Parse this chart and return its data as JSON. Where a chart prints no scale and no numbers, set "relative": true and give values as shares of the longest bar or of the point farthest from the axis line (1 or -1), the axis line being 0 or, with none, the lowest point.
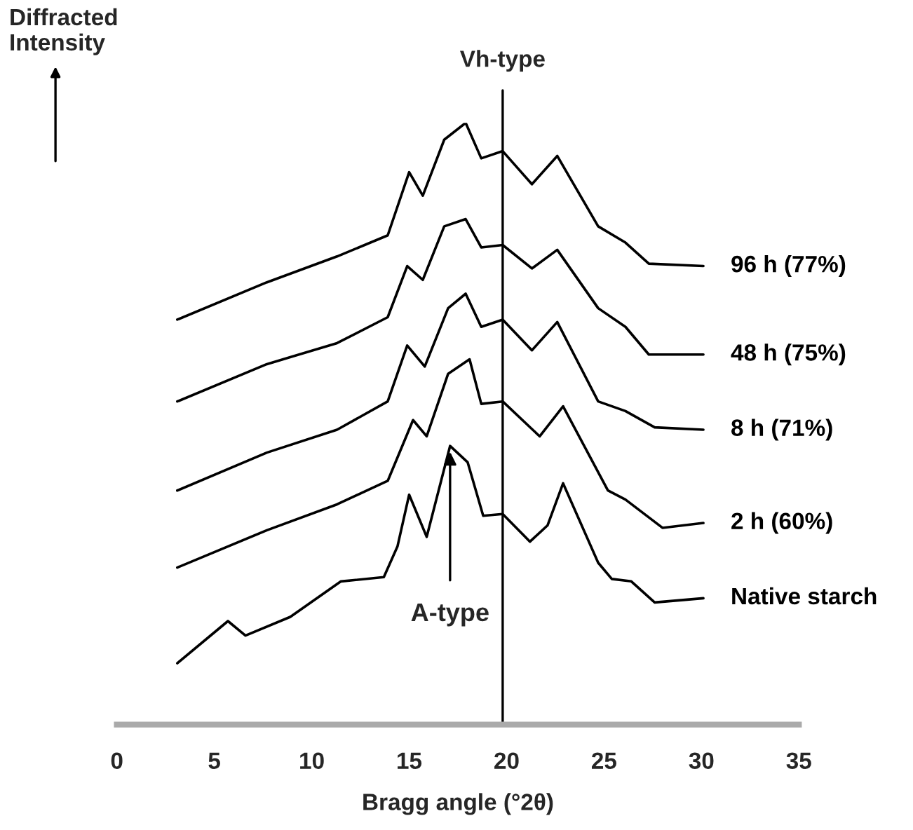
{
  "chart_data": {
    "type": "line",
    "relative": true,
    "ylabel": "Diffracted\nIntensity",
    "xlabel": "Bragg angle (°2θ)",
    "xlim": [
      0,
      35
    ],
    "xticks": [
      0,
      5,
      10,
      15,
      20,
      25,
      30,
      35
    ],
    "grid": false,
    "legend": false,
    "marker": "none",
    "line_style": "solid",
    "tick_labels": "x",
    "ref_lines": [
      {
        "axis": "x",
        "value": 19.8,
        "label": "Vh-type",
        "color": "#000000"
      }
    ],
    "annotations": [
      {
        "text": "A-type",
        "x": 17.1,
        "y": 0.463
      }
    ],
    "series": [
      {
        "name": "96 h (77%)",
        "color": "#000000",
        "x": [
          3.1,
          7.7,
          11.3,
          13.9,
          15.0,
          15.7,
          16.8,
          17.9,
          18.7,
          19.8,
          21.3,
          22.6,
          24.7,
          26.1,
          27.3,
          30.1
        ],
        "values": [
          0.673,
          0.735,
          0.778,
          0.813,
          0.918,
          0.879,
          0.972,
          1,
          0.941,
          0.953,
          0.898,
          0.945,
          0.828,
          0.801,
          0.766,
          0.762
        ]
      },
      {
        "name": "48 h (75%)",
        "color": "#000000",
        "x": [
          3.1,
          7.7,
          11.3,
          13.9,
          14.9,
          15.7,
          16.8,
          17.9,
          18.7,
          19.8,
          21.3,
          22.6,
          24.7,
          26.1,
          27.3,
          30.1
        ],
        "values": [
          0.537,
          0.599,
          0.634,
          0.677,
          0.762,
          0.739,
          0.828,
          0.84,
          0.793,
          0.797,
          0.758,
          0.789,
          0.692,
          0.661,
          0.615,
          0.615
        ]
      },
      {
        "name": "8 h (71%)",
        "color": "#000000",
        "x": [
          3.1,
          7.7,
          11.3,
          13.9,
          14.9,
          15.8,
          17.0,
          17.9,
          18.7,
          19.8,
          21.3,
          22.6,
          24.7,
          26.1,
          27.6,
          30.1
        ],
        "values": [
          0.389,
          0.452,
          0.49,
          0.537,
          0.63,
          0.595,
          0.692,
          0.716,
          0.661,
          0.673,
          0.622,
          0.669,
          0.537,
          0.521,
          0.494,
          0.49
        ]
      },
      {
        "name": "2 h (60%)",
        "color": "#000000",
        "x": [
          3.1,
          7.7,
          11.3,
          13.9,
          15.2,
          15.9,
          17.0,
          18.1,
          18.7,
          19.8,
          21.7,
          22.9,
          25.2,
          26.1,
          28.0,
          30.1
        ],
        "values": [
          0.261,
          0.323,
          0.366,
          0.405,
          0.506,
          0.479,
          0.583,
          0.607,
          0.533,
          0.537,
          0.479,
          0.529,
          0.389,
          0.374,
          0.327,
          0.335
        ]
      },
      {
        "name": "Native starch",
        "color": "#000000",
        "x": [
          3.1,
          5.7,
          6.6,
          8.9,
          11.5,
          13.7,
          14.4,
          15.0,
          15.9,
          17.1,
          18.0,
          18.8,
          19.8,
          21.2,
          22.1,
          22.9,
          24.7,
          25.4,
          26.4,
          27.6,
          30.1
        ],
        "values": [
          0.102,
          0.172,
          0.148,
          0.179,
          0.238,
          0.245,
          0.296,
          0.382,
          0.312,
          0.463,
          0.436,
          0.347,
          0.35,
          0.304,
          0.331,
          0.401,
          0.269,
          0.242,
          0.238,
          0.203,
          0.21
        ]
      }
    ]
  }
}
